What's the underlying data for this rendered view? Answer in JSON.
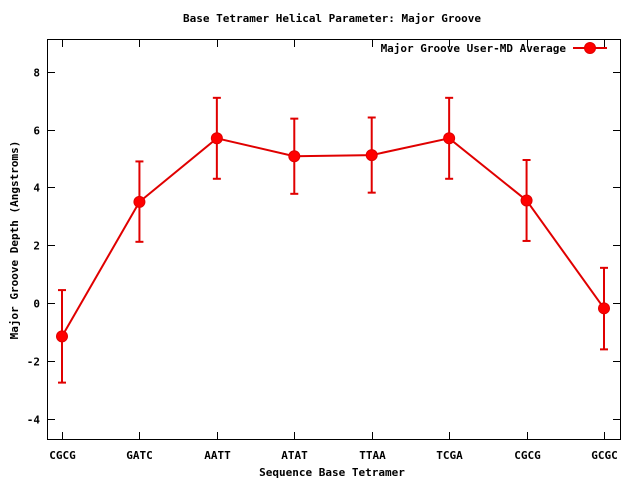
{
  "chart_data": {
    "type": "line",
    "title": "Base Tetramer Helical Parameter: Major Groove",
    "xlabel": "Sequence Base Tetramer",
    "ylabel": "Major Groove Depth (Angstroms)",
    "categories": [
      "CGCG",
      "GATC",
      "AATT",
      "ATAT",
      "TTAA",
      "TCGA",
      "CGCG",
      "GCGC"
    ],
    "ylim": [
      -4.7,
      9.1
    ],
    "yticks": [
      -4,
      -2,
      0,
      2,
      4,
      6,
      8
    ],
    "ytick_labels": [
      "-4",
      "-2",
      "0",
      "2",
      "4",
      "6",
      "8"
    ],
    "legend_position": "top-right",
    "grid": false,
    "series": [
      {
        "name": "Major Groove User-MD Average",
        "color": "#e00000",
        "values": [
          -1.15,
          3.5,
          5.7,
          5.08,
          5.12,
          5.7,
          3.55,
          -0.18
        ],
        "err_low": [
          -2.75,
          2.12,
          4.3,
          3.78,
          3.82,
          4.3,
          2.15,
          -1.6
        ],
        "err_high": [
          0.45,
          4.9,
          7.1,
          6.38,
          6.42,
          7.1,
          4.95,
          1.22
        ]
      }
    ]
  }
}
